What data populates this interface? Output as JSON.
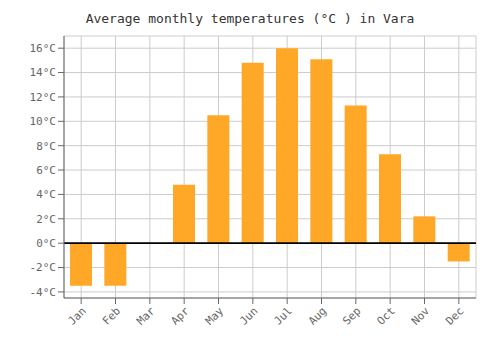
{
  "chart_data": {
    "type": "bar",
    "title": "Average monthly temperatures (°C ) in Vara",
    "categories": [
      "Jan",
      "Feb",
      "Mar",
      "Apr",
      "May",
      "Jun",
      "Jul",
      "Aug",
      "Sep",
      "Oct",
      "Nov",
      "Dec"
    ],
    "values": [
      -3.5,
      -3.5,
      0.0,
      4.8,
      10.5,
      14.8,
      16.0,
      15.1,
      11.3,
      7.3,
      2.2,
      -1.5
    ],
    "color": "#FFA726",
    "ylim": [
      -4.5,
      17.0
    ],
    "yticks": [
      {
        "value": -4,
        "label": "-4°C"
      },
      {
        "value": -2,
        "label": "-2°C"
      },
      {
        "value": 0,
        "label": "0°C"
      },
      {
        "value": 2,
        "label": "2°C"
      },
      {
        "value": 4,
        "label": "4°C"
      },
      {
        "value": 6,
        "label": "6°C"
      },
      {
        "value": 8,
        "label": "8°C"
      },
      {
        "value": 10,
        "label": "10°C"
      },
      {
        "value": 12,
        "label": "12°C"
      },
      {
        "value": 14,
        "label": "14°C"
      },
      {
        "value": 16,
        "label": "16°C"
      }
    ],
    "grid": true
  }
}
